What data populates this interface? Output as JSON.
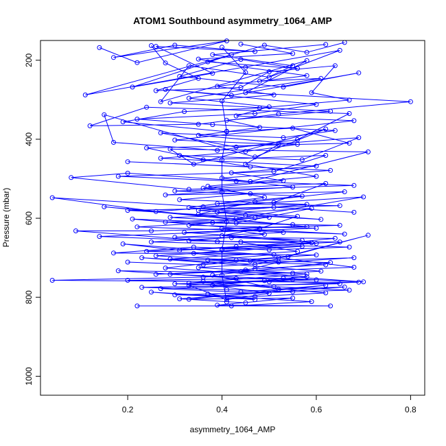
{
  "chart_data": {
    "type": "line",
    "title": "ATOM1 Southbound asymmetry_1064_AMP",
    "xlabel": "asymmetry_1064_AMP",
    "ylabel": "Pressure (mbar)",
    "xlim": [
      0.015,
      0.83
    ],
    "ylim": [
      1048,
      150
    ],
    "y_reversed": true,
    "x_ticks": [
      0.2,
      0.4,
      0.6,
      0.8
    ],
    "x_tick_labels": [
      "0.2",
      "0.4",
      "0.6",
      "0.8"
    ],
    "y_ticks": [
      200,
      400,
      600,
      800,
      1000
    ],
    "y_tick_labels": [
      "200",
      "400",
      "600",
      "800",
      "1000"
    ],
    "grid": false,
    "legend": "none",
    "series_color": "#0000ff",
    "series": [
      {
        "values": [
          [
            0.14,
            168
          ],
          [
            0.22,
            206
          ],
          [
            0.41,
            151
          ],
          [
            0.17,
            193
          ],
          [
            0.3,
            162
          ],
          [
            0.47,
            178
          ],
          [
            0.26,
            165
          ],
          [
            0.38,
            233
          ],
          [
            0.21,
            268
          ],
          [
            0.42,
            186
          ],
          [
            0.11,
            288
          ],
          [
            0.65,
            175
          ],
          [
            0.5,
            243
          ],
          [
            0.33,
            214
          ],
          [
            0.27,
            305
          ],
          [
            0.58,
            201
          ],
          [
            0.45,
            282
          ],
          [
            0.8,
            305
          ],
          [
            0.52,
            336
          ],
          [
            0.35,
            362
          ],
          [
            0.12,
            366
          ],
          [
            0.24,
            319
          ],
          [
            0.67,
            335
          ],
          [
            0.56,
            401
          ],
          [
            0.39,
            428
          ],
          [
            0.17,
            408
          ],
          [
            0.15,
            338
          ],
          [
            0.47,
            445
          ],
          [
            0.62,
            374
          ],
          [
            0.34,
            463
          ],
          [
            0.29,
            425
          ],
          [
            0.71,
            432
          ],
          [
            0.46,
            507
          ],
          [
            0.2,
            486
          ],
          [
            0.08,
            497
          ],
          [
            0.33,
            527
          ],
          [
            0.62,
            512
          ],
          [
            0.51,
            560
          ],
          [
            0.26,
            583
          ],
          [
            0.04,
            548
          ],
          [
            0.36,
            571
          ],
          [
            0.7,
            546
          ],
          [
            0.43,
            601
          ],
          [
            0.15,
            571
          ],
          [
            0.58,
            621
          ],
          [
            0.25,
            632
          ],
          [
            0.09,
            632
          ],
          [
            0.39,
            659
          ],
          [
            0.65,
            660
          ],
          [
            0.31,
            681
          ],
          [
            0.19,
            665
          ],
          [
            0.54,
            697
          ],
          [
            0.71,
            643
          ],
          [
            0.47,
            717
          ],
          [
            0.23,
            700
          ],
          [
            0.61,
            734
          ],
          [
            0.36,
            749
          ],
          [
            0.04,
            757
          ],
          [
            0.5,
            761
          ],
          [
            0.69,
            762
          ],
          [
            0.27,
            778
          ],
          [
            0.44,
            787
          ],
          [
            0.62,
            770
          ],
          [
            0.33,
            805
          ],
          [
            0.55,
            802
          ],
          [
            0.39,
            820
          ],
          [
            0.63,
            822
          ],
          [
            0.22,
            822
          ]
        ]
      },
      {
        "values": [
          [
            0.66,
            155
          ],
          [
            0.58,
            180
          ],
          [
            0.49,
            162
          ],
          [
            0.37,
            204
          ],
          [
            0.56,
            221
          ],
          [
            0.44,
            198
          ],
          [
            0.31,
            241
          ],
          [
            0.53,
            268
          ],
          [
            0.69,
            232
          ],
          [
            0.42,
            289
          ],
          [
            0.28,
            274
          ],
          [
            0.6,
            312
          ],
          [
            0.47,
            335
          ],
          [
            0.22,
            349
          ],
          [
            0.38,
            363
          ],
          [
            0.64,
            378
          ],
          [
            0.53,
            396
          ],
          [
            0.27,
            384
          ],
          [
            0.43,
            420
          ],
          [
            0.69,
            396
          ],
          [
            0.57,
            452
          ],
          [
            0.31,
            441
          ],
          [
            0.46,
            470
          ],
          [
            0.2,
            457
          ],
          [
            0.63,
            479
          ],
          [
            0.4,
            498
          ],
          [
            0.55,
            521
          ],
          [
            0.28,
            541
          ],
          [
            0.66,
            533
          ],
          [
            0.47,
            558
          ],
          [
            0.35,
            590
          ],
          [
            0.59,
            575
          ],
          [
            0.43,
            612
          ],
          [
            0.21,
            602
          ],
          [
            0.53,
            636
          ],
          [
            0.3,
            648
          ],
          [
            0.64,
            651
          ],
          [
            0.4,
            678
          ],
          [
            0.57,
            671
          ],
          [
            0.26,
            695
          ],
          [
            0.46,
            708
          ],
          [
            0.68,
            700
          ],
          [
            0.35,
            725
          ],
          [
            0.55,
            739
          ],
          [
            0.18,
            733
          ],
          [
            0.43,
            752
          ],
          [
            0.6,
            756
          ],
          [
            0.3,
            766
          ],
          [
            0.51,
            773
          ],
          [
            0.67,
            782
          ],
          [
            0.37,
            792
          ],
          [
            0.47,
            806
          ],
          [
            0.25,
            787
          ],
          [
            0.59,
            811
          ],
          [
            0.42,
            822
          ]
        ]
      },
      {
        "values": [
          [
            0.62,
            160
          ],
          [
            0.38,
            186
          ],
          [
            0.55,
            214
          ],
          [
            0.48,
            253
          ],
          [
            0.61,
            246
          ],
          [
            0.33,
            296
          ],
          [
            0.5,
            318
          ],
          [
            0.43,
            341
          ],
          [
            0.68,
            353
          ],
          [
            0.3,
            402
          ],
          [
            0.52,
            413
          ],
          [
            0.45,
            463
          ],
          [
            0.6,
            494
          ],
          [
            0.37,
            519
          ],
          [
            0.49,
            547
          ],
          [
            0.33,
            573
          ],
          [
            0.56,
            595
          ],
          [
            0.48,
            626
          ],
          [
            0.4,
            644
          ],
          [
            0.59,
            662
          ],
          [
            0.34,
            689
          ],
          [
            0.52,
            711
          ],
          [
            0.44,
            735
          ],
          [
            0.58,
            748
          ],
          [
            0.38,
            770
          ],
          [
            0.5,
            790
          ],
          [
            0.41,
            806
          ],
          [
            0.33,
            770
          ],
          [
            0.55,
            755
          ],
          [
            0.29,
            742
          ],
          [
            0.47,
            728
          ],
          [
            0.62,
            718
          ],
          [
            0.37,
            706
          ],
          [
            0.51,
            692
          ],
          [
            0.24,
            684
          ],
          [
            0.43,
            672
          ],
          [
            0.6,
            664
          ],
          [
            0.33,
            657
          ],
          [
            0.49,
            641
          ],
          [
            0.4,
            626
          ],
          [
            0.65,
            618
          ],
          [
            0.28,
            610
          ],
          [
            0.5,
            598
          ],
          [
            0.39,
            585
          ],
          [
            0.58,
            565
          ],
          [
            0.31,
            553
          ],
          [
            0.46,
            538
          ],
          [
            0.36,
            524
          ],
          [
            0.53,
            505
          ],
          [
            0.42,
            485
          ],
          [
            0.6,
            468
          ],
          [
            0.27,
            448
          ],
          [
            0.45,
            431
          ],
          [
            0.56,
            413
          ],
          [
            0.35,
            390
          ],
          [
            0.48,
            370
          ],
          [
            0.41,
            352
          ],
          [
            0.63,
            329
          ],
          [
            0.29,
            308
          ],
          [
            0.51,
            288
          ],
          [
            0.39,
            266
          ],
          [
            0.58,
            239
          ],
          [
            0.45,
            218
          ],
          [
            0.35,
            197
          ],
          [
            0.55,
            183
          ],
          [
            0.44,
            159
          ]
        ]
      },
      {
        "values": [
          [
            0.2,
            711
          ],
          [
            0.36,
            718
          ],
          [
            0.52,
            700
          ],
          [
            0.68,
            724
          ],
          [
            0.26,
            742
          ],
          [
            0.45,
            731
          ],
          [
            0.58,
            741
          ],
          [
            0.33,
            764
          ],
          [
            0.49,
            758
          ],
          [
            0.65,
            766
          ],
          [
            0.23,
            775
          ],
          [
            0.41,
            781
          ],
          [
            0.55,
            786
          ],
          [
            0.3,
            794
          ],
          [
            0.47,
            798
          ],
          [
            0.62,
            789
          ],
          [
            0.36,
            760
          ],
          [
            0.2,
            757
          ],
          [
            0.53,
            752
          ],
          [
            0.7,
            761
          ],
          [
            0.28,
            726
          ],
          [
            0.43,
            706
          ],
          [
            0.6,
            693
          ],
          [
            0.17,
            688
          ],
          [
            0.34,
            673
          ],
          [
            0.5,
            680
          ],
          [
            0.67,
            673
          ],
          [
            0.25,
            660
          ],
          [
            0.42,
            649
          ],
          [
            0.57,
            656
          ],
          [
            0.32,
            636
          ],
          [
            0.48,
            629
          ],
          [
            0.66,
            640
          ],
          [
            0.22,
            622
          ],
          [
            0.38,
            611
          ],
          [
            0.55,
            616
          ],
          [
            0.29,
            598
          ],
          [
            0.45,
            592
          ],
          [
            0.61,
            603
          ],
          [
            0.35,
            580
          ],
          [
            0.51,
            572
          ],
          [
            0.68,
            585
          ]
        ]
      },
      {
        "values": [
          [
            0.25,
            163
          ],
          [
            0.28,
            207
          ],
          [
            0.35,
            246
          ],
          [
            0.26,
            277
          ],
          [
            0.44,
            269
          ],
          [
            0.5,
            229
          ],
          [
            0.64,
            214
          ],
          [
            0.59,
            282
          ],
          [
            0.67,
            301
          ],
          [
            0.48,
            321
          ],
          [
            0.32,
            330
          ],
          [
            0.19,
            356
          ],
          [
            0.41,
            381
          ],
          [
            0.55,
            372
          ],
          [
            0.67,
            410
          ],
          [
            0.24,
            422
          ],
          [
            0.36,
            452
          ],
          [
            0.62,
            441
          ],
          [
            0.51,
            482
          ],
          [
            0.18,
            494
          ],
          [
            0.43,
            506
          ],
          [
            0.68,
            517
          ],
          [
            0.3,
            531
          ],
          [
            0.57,
            544
          ],
          [
            0.39,
            563
          ],
          [
            0.65,
            568
          ],
          [
            0.2,
            580
          ],
          [
            0.47,
            599
          ],
          [
            0.33,
            618
          ],
          [
            0.6,
            625
          ],
          [
            0.14,
            646
          ],
          [
            0.44,
            660
          ],
          [
            0.56,
            684
          ],
          [
            0.29,
            703
          ],
          [
            0.63,
            712
          ],
          [
            0.38,
            744
          ],
          [
            0.52,
            780
          ],
          [
            0.66,
            774
          ],
          [
            0.31,
            804
          ],
          [
            0.45,
            814
          ]
        ]
      },
      {
        "values": [
          [
            0.4,
            167
          ],
          [
            0.45,
            231
          ],
          [
            0.4,
            303
          ],
          [
            0.41,
            380
          ],
          [
            0.4,
            452
          ],
          [
            0.4,
            534
          ],
          [
            0.41,
            609
          ],
          [
            0.4,
            681
          ],
          [
            0.4,
            744
          ],
          [
            0.41,
            812
          ]
        ]
      }
    ]
  }
}
